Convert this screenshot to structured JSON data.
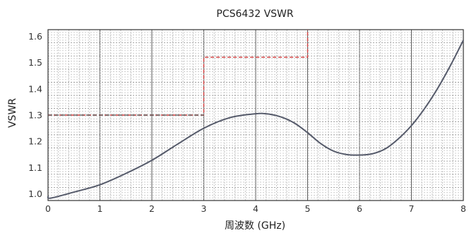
{
  "chart_data": {
    "type": "line",
    "title": "PCS6432 VSWR",
    "xlabel": "周波数 (GHz)",
    "ylabel": "VSWR",
    "xlim": [
      0,
      8
    ],
    "ylim": [
      0.975,
      1.625
    ],
    "x_ticks": [
      "0",
      "1",
      "2",
      "3",
      "4",
      "5",
      "6",
      "7",
      "8"
    ],
    "y_ticks": [
      "1.0",
      "1.1",
      "1.2",
      "1.3",
      "1.4",
      "1.5",
      "1.6"
    ],
    "grid": true,
    "series": [
      {
        "color": "#555a6a",
        "x": [
          0.0,
          0.05,
          0.5,
          1.0,
          1.5,
          2.0,
          2.5,
          3.0,
          3.5,
          4.0,
          4.25,
          4.5,
          4.75,
          5.0,
          5.25,
          5.5,
          5.75,
          6.0,
          6.25,
          6.5,
          6.75,
          7.0,
          7.25,
          7.5,
          7.75,
          8.0
        ],
        "y": [
          0.992,
          0.984,
          1.007,
          1.035,
          1.078,
          1.128,
          1.19,
          1.25,
          1.29,
          1.305,
          1.304,
          1.292,
          1.269,
          1.233,
          1.192,
          1.163,
          1.15,
          1.148,
          1.153,
          1.172,
          1.21,
          1.26,
          1.324,
          1.4,
          1.488,
          1.585
        ]
      }
    ],
    "limit_lines": [
      {
        "color": "#d43a3a",
        "style": "dashed",
        "points": [
          [
            0,
            1.3
          ],
          [
            3,
            1.3
          ],
          [
            3,
            1.52
          ],
          [
            5,
            1.52
          ],
          [
            5,
            1.625
          ]
        ]
      }
    ]
  }
}
